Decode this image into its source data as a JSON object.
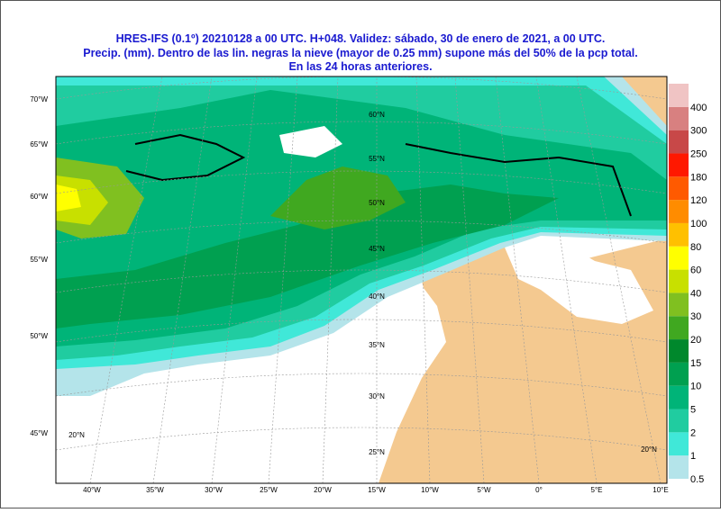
{
  "header": {
    "lines": [
      "HRES-IFS (0.1º) 20210128 a 00 UTC.  H+048. Validez: sábado, 30 de enero de 2021,  a  00 UTC.",
      "Precip. (mm). Dentro de las lin. negras la nieve (mayor de 0.25 mm) supone más del 50% de la pcp total.",
      "En las 24 horas anteriores."
    ]
  },
  "map": {
    "left_labels": [
      "70°W",
      "65°W",
      "60°W",
      "55°W",
      "50°W",
      "45°W"
    ],
    "bottom_labels": [
      "40°W",
      "35°W",
      "30°W",
      "25°W",
      "20°W",
      "15°W",
      "10°W",
      "5°W",
      "0°",
      "5°E",
      "10°E"
    ],
    "lat_labels": [
      "60°N",
      "55°N",
      "50°N",
      "45°N",
      "40°N",
      "35°N",
      "30°N",
      "25°N"
    ],
    "corner_labels": [
      "20°N",
      "20°N"
    ]
  },
  "legend": {
    "items": [
      {
        "label": "0.5",
        "color": "#b4e4ea"
      },
      {
        "label": "1",
        "color": "#40e8d8"
      },
      {
        "label": "2",
        "color": "#20cca0"
      },
      {
        "label": "5",
        "color": "#00b478"
      },
      {
        "label": "10",
        "color": "#00a050"
      },
      {
        "label": "15",
        "color": "#00882c"
      },
      {
        "label": "20",
        "color": "#40a820"
      },
      {
        "label": "30",
        "color": "#80c020"
      },
      {
        "label": "40",
        "color": "#c8e000"
      },
      {
        "label": "60",
        "color": "#ffff00"
      },
      {
        "label": "80",
        "color": "#ffc000"
      },
      {
        "label": "100",
        "color": "#ff8c00"
      },
      {
        "label": "120",
        "color": "#ff5a00"
      },
      {
        "label": "180",
        "color": "#ff1800"
      },
      {
        "label": "250",
        "color": "#c84848"
      },
      {
        "label": "300",
        "color": "#d88080"
      },
      {
        "label": "400",
        "color": "#f0c4c4"
      }
    ]
  }
}
